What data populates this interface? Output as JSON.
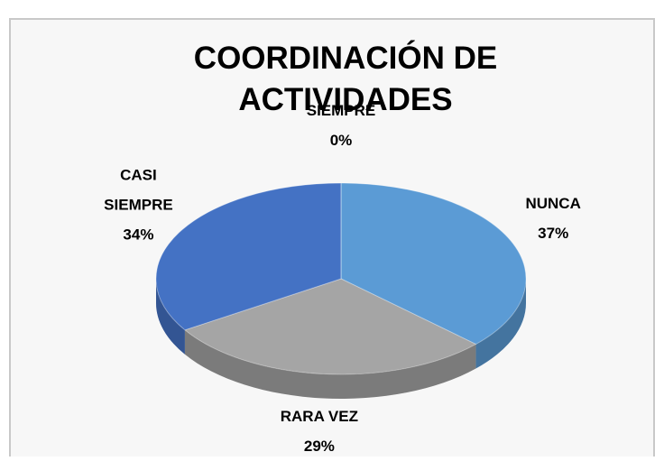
{
  "chart_data": {
    "type": "pie",
    "title": "COORDINACIÓN DE ACTIVIDADES",
    "categories": [
      "NUNCA",
      "RARA VEZ",
      "CASI SIEMPRE",
      "SIEMPRE"
    ],
    "values": [
      37,
      29,
      34,
      0
    ],
    "value_labels": [
      "37%",
      "29%",
      "34%",
      "0%"
    ],
    "colors": [
      "#5b9bd5",
      "#a5a5a5",
      "#4472c4",
      "#ed7d31"
    ]
  }
}
